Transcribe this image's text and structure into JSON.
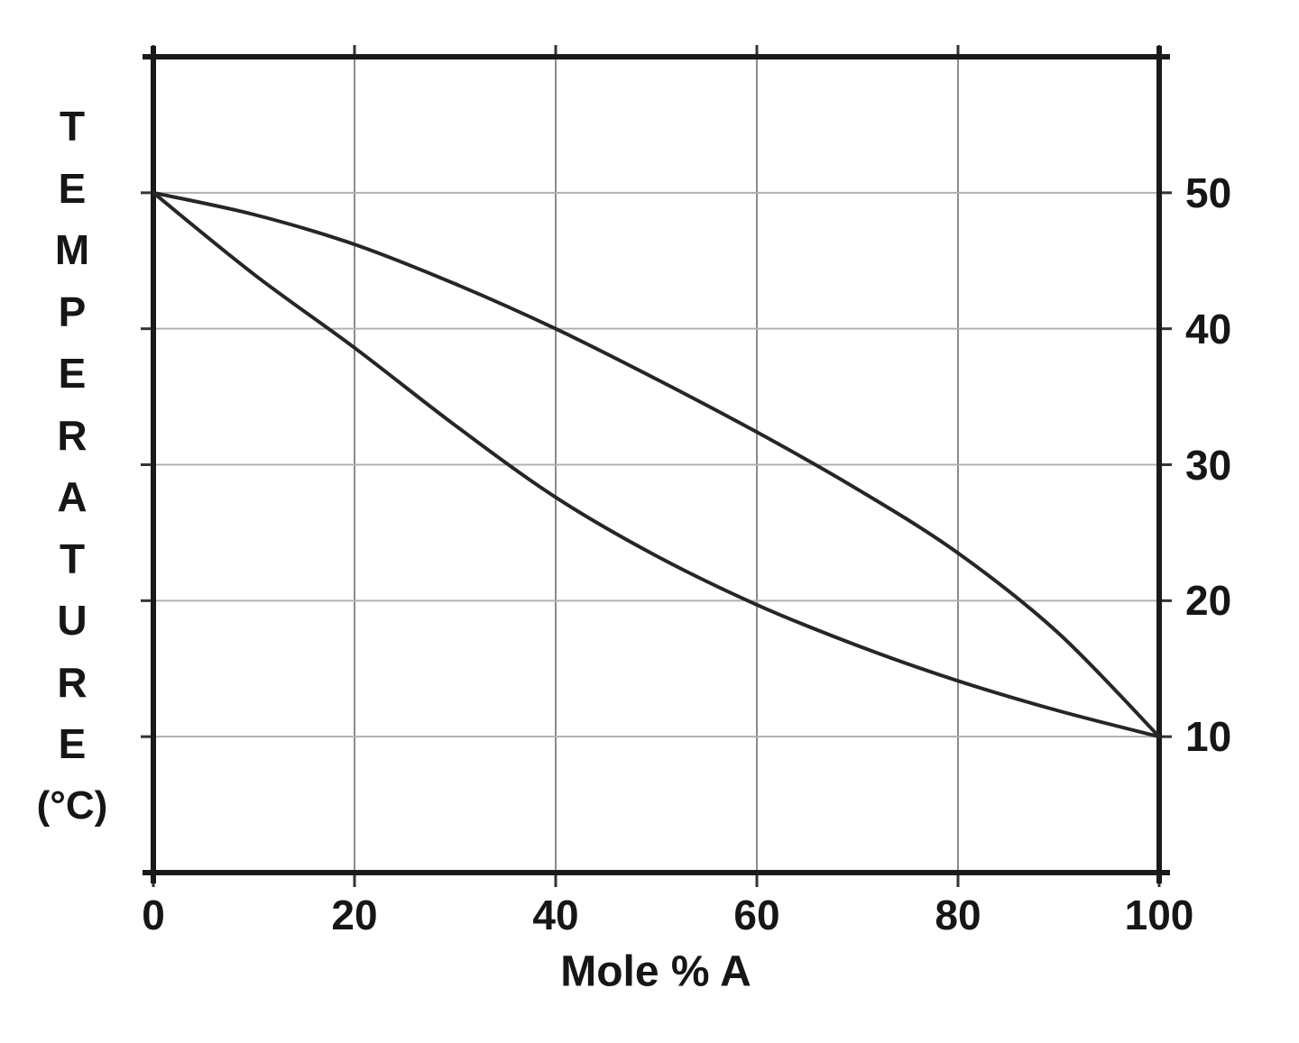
{
  "chart_data": {
    "type": "line",
    "title": "",
    "xlabel": "Mole % A",
    "ylabel": "TEMPERATURE (°C)",
    "ylabel_chars": [
      "T",
      "E",
      "M",
      "P",
      "E",
      "R",
      "A",
      "T",
      "U",
      "R",
      "E",
      "(°C)"
    ],
    "x_ticks": [
      0,
      20,
      40,
      60,
      80,
      100
    ],
    "y_ticks": [
      50,
      40,
      30,
      20,
      10
    ],
    "xlim": [
      0,
      100
    ],
    "ylim": [
      0,
      60
    ],
    "grid": true,
    "legend": "none",
    "series": [
      {
        "name": "upper-boundary-curve",
        "x": [
          0,
          10,
          20,
          30,
          40,
          50,
          60,
          70,
          80,
          90,
          100
        ],
        "y": [
          50,
          48.4,
          46.2,
          43.3,
          40,
          36.3,
          32.4,
          28.2,
          23.5,
          17.6,
          10
        ]
      },
      {
        "name": "lower-boundary-curve",
        "x": [
          0,
          10,
          20,
          30,
          40,
          50,
          60,
          70,
          80,
          90,
          100
        ],
        "y": [
          50,
          44,
          38.6,
          32.9,
          27.6,
          23.3,
          19.7,
          16.7,
          14.1,
          11.9,
          10
        ]
      }
    ],
    "colors": {
      "curve": "#262626",
      "border": "#1a1a1a",
      "grid_vertical": "#8c8c8c",
      "grid_horizontal": "#b0b0b0",
      "tick": "#333333",
      "text": "#161616"
    }
  }
}
